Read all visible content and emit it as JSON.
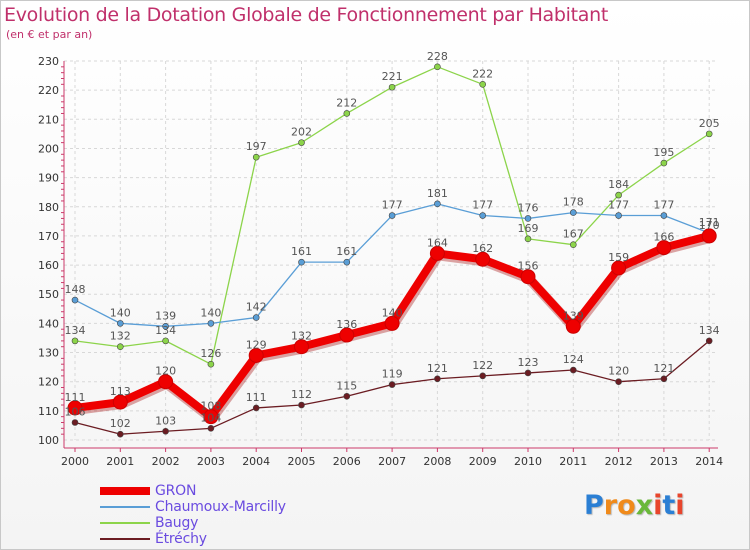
{
  "title": "Evolution de la Dotation Globale de Fonctionnement par Habitant",
  "subtitle": "(en € et par an)",
  "logo": {
    "text": "Proxiti",
    "letter_colors": [
      "#2b7fd4",
      "#f08a1a",
      "#f08a1a",
      "#6ab83a",
      "#e8452c",
      "#2b7fd4",
      "#e8452c"
    ]
  },
  "chart_data": {
    "type": "line",
    "title": "Evolution de la Dotation Globale de Fonctionnement par Habitant",
    "subtitle": "(en € et par an)",
    "x": [
      "2000",
      "2001",
      "2002",
      "2003",
      "2004",
      "2005",
      "2006",
      "2007",
      "2008",
      "2009",
      "2010",
      "2011",
      "2012",
      "2013",
      "2014"
    ],
    "y_ticks": [
      "100",
      "110",
      "120",
      "130",
      "140",
      "150",
      "160",
      "170",
      "180",
      "190",
      "200",
      "210",
      "220",
      "230"
    ],
    "ylim": [
      100,
      230
    ],
    "grid": true,
    "legend_position": "bottom-left",
    "series": [
      {
        "name": "Étréchy",
        "color": "#6b1c22",
        "values": [
          106,
          102,
          103,
          104,
          111,
          112,
          115,
          119,
          121,
          122,
          123,
          124,
          120,
          121,
          134
        ],
        "labels": [
          "106",
          "102",
          "103",
          "104",
          "111",
          "112",
          "115",
          "119",
          "121",
          "122",
          "123",
          "124",
          "120",
          "121",
          "134"
        ]
      },
      {
        "name": "Baugy",
        "color": "#8cd44a",
        "values": [
          134,
          132,
          134,
          126,
          197,
          202,
          212,
          221,
          228,
          222,
          169,
          167,
          184,
          195,
          205
        ],
        "labels": [
          "134",
          "132",
          "134",
          "126",
          "197",
          "202",
          "212",
          "221",
          "228",
          "222",
          "169",
          "167",
          "184",
          "195",
          "205"
        ]
      },
      {
        "name": "Chaumoux-Marcilly",
        "color": "#5a9ed6",
        "values": [
          148,
          140,
          139,
          140,
          142,
          161,
          161,
          177,
          181,
          177,
          176,
          178,
          177,
          177,
          171
        ],
        "labels": [
          "148",
          "140",
          "139",
          "140",
          "142",
          "161",
          "161",
          "177",
          "181",
          "177",
          "176",
          "178",
          "177",
          "177",
          "171"
        ]
      },
      {
        "name": "GRON",
        "color": "#ee0000",
        "values": [
          111,
          113,
          120,
          108,
          129,
          132,
          136,
          140,
          164,
          162,
          156,
          139,
          159,
          166,
          170
        ],
        "labels": [
          "111",
          "113",
          "120",
          "108",
          "129",
          "132",
          "136",
          "140",
          "164",
          "162",
          "156",
          "139",
          "159",
          "166",
          "170"
        ]
      }
    ],
    "legend": [
      {
        "name": "GRON",
        "color": "#ee0000"
      },
      {
        "name": "Chaumoux-Marcilly",
        "color": "#5a9ed6"
      },
      {
        "name": "Baugy",
        "color": "#8cd44a"
      },
      {
        "name": "Étréchy",
        "color": "#6b1c22"
      }
    ]
  }
}
